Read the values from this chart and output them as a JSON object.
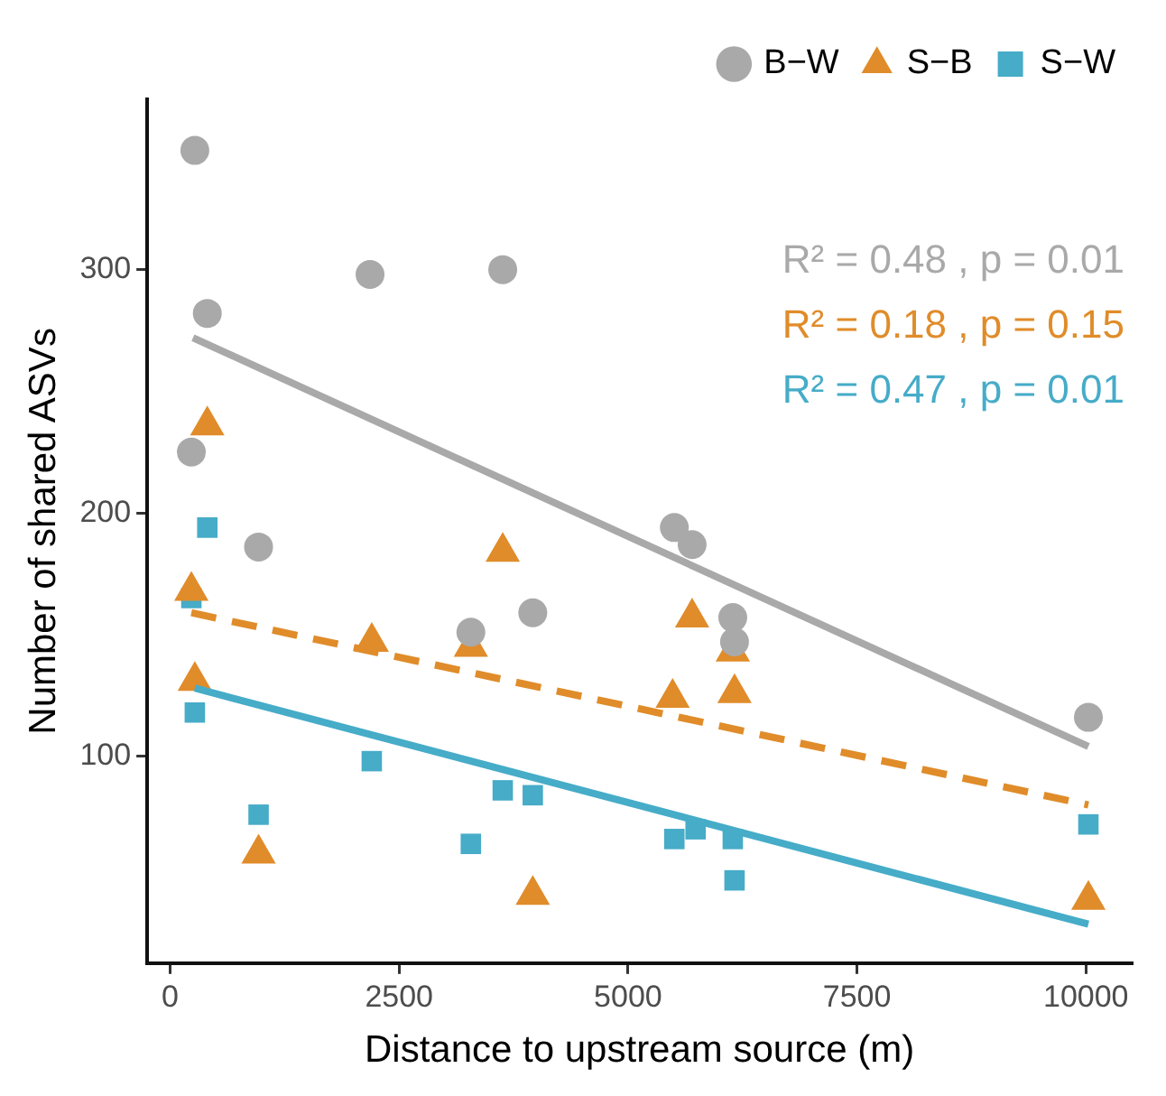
{
  "chart_data": {
    "type": "scatter",
    "xlabel": "Distance to upstream source (m)",
    "ylabel": "Number of shared ASVs",
    "xlim": [
      -250,
      10500
    ],
    "xticks": [
      0,
      2500,
      5000,
      7500,
      10000
    ],
    "ylim": [
      15,
      370
    ],
    "yticks": [
      100,
      200,
      300
    ],
    "grid": false,
    "legend": "top right",
    "annotations": [
      "R² = 0.48 , p = 0.01",
      "R² = 0.18 , p = 0.15",
      "R² = 0.47 , p = 0.01"
    ],
    "series": [
      {
        "name": "B−W",
        "type": "scatter",
        "marker": "circle",
        "color": "#a9a9a9",
        "x": [
          270,
          406,
          2183,
          3632,
          232,
          966,
          3284,
          3960,
          5506,
          5700,
          6144,
          6163,
          10027
        ],
        "values": [
          349,
          282,
          298,
          300,
          225,
          186,
          151,
          159,
          194,
          187,
          157,
          147,
          116
        ]
      },
      {
        "name": "S−B",
        "type": "scatter",
        "marker": "triangle",
        "color": "#e08c2a",
        "x": [
          406,
          3632,
          232,
          2202,
          3284,
          270,
          966,
          3960,
          5700,
          6144,
          5487,
          6163,
          10027
        ],
        "values": [
          236,
          184,
          168,
          147,
          145,
          131,
          60,
          43,
          157,
          143,
          124,
          126,
          41
        ]
      },
      {
        "name": "S−W",
        "type": "scatter",
        "marker": "square",
        "color": "#46acc8",
        "x": [
          406,
          232,
          270,
          2202,
          966,
          3284,
          3632,
          3960,
          5506,
          5738,
          6144,
          6163,
          10027
        ],
        "values": [
          194,
          165,
          118,
          98,
          76,
          64,
          86,
          84,
          66,
          70,
          66,
          49,
          72
        ]
      },
      {
        "type": "line",
        "line_style": "solid",
        "color": "#a9a9a9",
        "x": [
          250,
          10027
        ],
        "values": [
          272,
          104
        ]
      },
      {
        "type": "line",
        "line_style": "dashed",
        "color": "#e08c2a",
        "x": [
          232,
          10027
        ],
        "values": [
          159,
          80
        ]
      },
      {
        "type": "line",
        "line_style": "solid",
        "color": "#46acc8",
        "x": [
          270,
          10027
        ],
        "values": [
          128,
          31
        ]
      }
    ]
  }
}
